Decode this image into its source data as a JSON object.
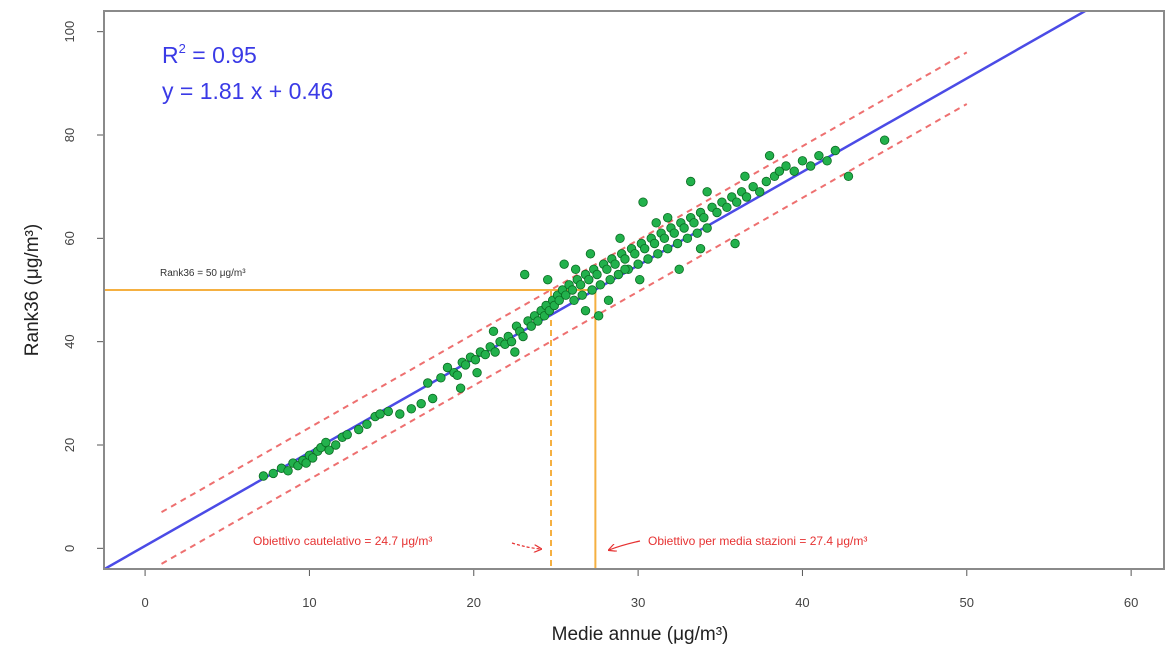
{
  "chart_data": {
    "type": "scatter",
    "xlabel": "Medie annue  (μg/m³)",
    "ylabel": "Rank36  (μg/m³)",
    "xlim": [
      -2.5,
      62
    ],
    "ylim": [
      -4,
      104
    ],
    "x_ticks": [
      0,
      10,
      20,
      30,
      40,
      50,
      60
    ],
    "y_ticks": [
      0,
      20,
      40,
      60,
      80,
      100
    ],
    "grid": false,
    "colors": {
      "points": "#22b14c",
      "point_edge": "#0b6b22",
      "regression": "#4b4be6",
      "band": "#ee7070",
      "threshold": "#f5b041",
      "annotation_blue": "#3a3ae6",
      "annotation_red": "#e63232"
    },
    "regression": {
      "slope": 1.81,
      "intercept": 0.46,
      "x_range": [
        -2.5,
        57.2
      ]
    },
    "bands": [
      {
        "style": "dashed",
        "points": [
          [
            1,
            7
          ],
          [
            50,
            96
          ]
        ]
      },
      {
        "style": "dashed",
        "points": [
          [
            1,
            -3
          ],
          [
            50,
            86
          ]
        ]
      }
    ],
    "thresholds": {
      "rank36_hline": {
        "y": 50,
        "x_end": 27.4
      },
      "cautelativo_vline": {
        "x": 24.7,
        "style": "dashed"
      },
      "media_vline": {
        "x": 27.4,
        "style": "solid"
      }
    },
    "points": [
      [
        7.2,
        14
      ],
      [
        7.8,
        14.5
      ],
      [
        8.3,
        15.5
      ],
      [
        8.7,
        15
      ],
      [
        9,
        16.5
      ],
      [
        9.3,
        16
      ],
      [
        9.6,
        17
      ],
      [
        9.8,
        16.5
      ],
      [
        10,
        18
      ],
      [
        10.2,
        17.5
      ],
      [
        10.5,
        18.8
      ],
      [
        10.7,
        19.5
      ],
      [
        11,
        20.5
      ],
      [
        11.2,
        19
      ],
      [
        11.6,
        20
      ],
      [
        12,
        21.5
      ],
      [
        12.3,
        22
      ],
      [
        13,
        23
      ],
      [
        13.5,
        24
      ],
      [
        14,
        25.5
      ],
      [
        14.3,
        26
      ],
      [
        14.8,
        26.5
      ],
      [
        15.5,
        26
      ],
      [
        16.2,
        27
      ],
      [
        16.8,
        28
      ],
      [
        17.2,
        32
      ],
      [
        17.5,
        29
      ],
      [
        18,
        33
      ],
      [
        18.4,
        35
      ],
      [
        18.8,
        34
      ],
      [
        19,
        33.5
      ],
      [
        19.3,
        36
      ],
      [
        19.5,
        35.5
      ],
      [
        19.8,
        37
      ],
      [
        20.1,
        36.5
      ],
      [
        20.4,
        38
      ],
      [
        20.7,
        37.5
      ],
      [
        21,
        39
      ],
      [
        21.3,
        38
      ],
      [
        21.6,
        40
      ],
      [
        21.9,
        39.5
      ],
      [
        22.1,
        41
      ],
      [
        22.3,
        40
      ],
      [
        22.6,
        43
      ],
      [
        22.8,
        42
      ],
      [
        23,
        41
      ],
      [
        23.1,
        53
      ],
      [
        23.3,
        44
      ],
      [
        23.5,
        43
      ],
      [
        23.7,
        45
      ],
      [
        23.9,
        44
      ],
      [
        24.1,
        46
      ],
      [
        24.3,
        45
      ],
      [
        24.4,
        47
      ],
      [
        24.6,
        46
      ],
      [
        24.8,
        48
      ],
      [
        24.9,
        47
      ],
      [
        25.1,
        49
      ],
      [
        25.2,
        48
      ],
      [
        25.4,
        50
      ],
      [
        25.6,
        49
      ],
      [
        25.8,
        51
      ],
      [
        26,
        50
      ],
      [
        26.1,
        48
      ],
      [
        26.3,
        52
      ],
      [
        26.5,
        51
      ],
      [
        26.6,
        49
      ],
      [
        26.8,
        53
      ],
      [
        27,
        52
      ],
      [
        27.2,
        50
      ],
      [
        27.3,
        54
      ],
      [
        27.5,
        53
      ],
      [
        27.7,
        51
      ],
      [
        27.9,
        55
      ],
      [
        28.1,
        54
      ],
      [
        28.3,
        52
      ],
      [
        28.4,
        56
      ],
      [
        28.6,
        55
      ],
      [
        28.8,
        53
      ],
      [
        29,
        57
      ],
      [
        29.2,
        56
      ],
      [
        29.4,
        54
      ],
      [
        29.6,
        58
      ],
      [
        29.8,
        57
      ],
      [
        30,
        55
      ],
      [
        30.2,
        59
      ],
      [
        30.4,
        58
      ],
      [
        30.6,
        56
      ],
      [
        30.8,
        60
      ],
      [
        31,
        59
      ],
      [
        31.2,
        57
      ],
      [
        31.4,
        61
      ],
      [
        31.6,
        60
      ],
      [
        31.8,
        58
      ],
      [
        32,
        62
      ],
      [
        32.2,
        61
      ],
      [
        32.4,
        59
      ],
      [
        32.6,
        63
      ],
      [
        32.8,
        62
      ],
      [
        33,
        60
      ],
      [
        33.2,
        64
      ],
      [
        33.4,
        63
      ],
      [
        33.6,
        61
      ],
      [
        33.8,
        65
      ],
      [
        34,
        64
      ],
      [
        34.2,
        62
      ],
      [
        34.5,
        66
      ],
      [
        34.8,
        65
      ],
      [
        35.1,
        67
      ],
      [
        35.4,
        66
      ],
      [
        35.7,
        68
      ],
      [
        36,
        67
      ],
      [
        36.3,
        69
      ],
      [
        36.6,
        68
      ],
      [
        37,
        70
      ],
      [
        37.4,
        69
      ],
      [
        37.8,
        71
      ],
      [
        38,
        76
      ],
      [
        38.3,
        72
      ],
      [
        38.6,
        73
      ],
      [
        39,
        74
      ],
      [
        39.5,
        73
      ],
      [
        40,
        75
      ],
      [
        40.5,
        74
      ],
      [
        41,
        76
      ],
      [
        41.5,
        75
      ],
      [
        42,
        77
      ],
      [
        42.8,
        72
      ],
      [
        45,
        79
      ],
      [
        33.2,
        71
      ],
      [
        30.3,
        67
      ],
      [
        36.5,
        72
      ],
      [
        35.9,
        59
      ],
      [
        29.2,
        54
      ],
      [
        28.2,
        48
      ],
      [
        27.6,
        45
      ],
      [
        26.2,
        54
      ],
      [
        25.5,
        55
      ],
      [
        24.5,
        52
      ],
      [
        27.1,
        57
      ],
      [
        31.8,
        64
      ],
      [
        32.5,
        54
      ],
      [
        30.1,
        52
      ],
      [
        34.2,
        69
      ],
      [
        22.5,
        38
      ],
      [
        21.2,
        42
      ],
      [
        20.2,
        34
      ],
      [
        19.2,
        31
      ],
      [
        26.8,
        46
      ],
      [
        28.9,
        60
      ],
      [
        31.1,
        63
      ],
      [
        33.8,
        58
      ]
    ],
    "annotations": {
      "r2_prefix": "R",
      "r2_sup": "2",
      "r2_suffix": " = 0.95",
      "equation": "y = 1.81 x + 0.46",
      "rank36_label": "Rank36 = 50 μg/m³",
      "cautelativo_label": "Obiettivo cautelativo = 24.7 μg/m³",
      "media_label": "Obiettivo per media stazioni = 27.4 μg/m³"
    }
  }
}
